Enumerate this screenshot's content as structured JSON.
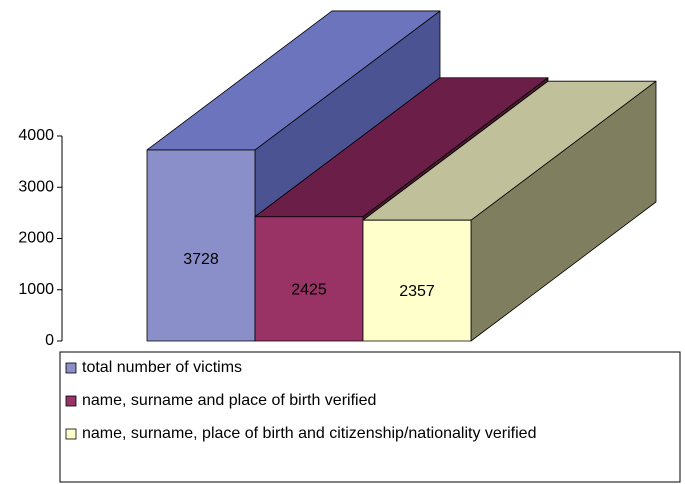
{
  "chart_data": {
    "type": "bar",
    "categories": [
      null
    ],
    "series": [
      {
        "name": "total number of victims",
        "values": [
          3728
        ],
        "color": "#8b8fc9",
        "side_color": "#4b5393",
        "top_color": "#6c74bd"
      },
      {
        "name": "name, surname and place of birth verified",
        "values": [
          2425
        ],
        "color": "#993366",
        "side_color": "#4d1a33",
        "top_color": "#6b1f48"
      },
      {
        "name": "name, surname, place of birth and citizenship/nationality verified",
        "values": [
          2357
        ],
        "color": "#ffffcc",
        "side_color": "#7f7f5f",
        "top_color": "#c0c09a"
      }
    ],
    "ylim": [
      0,
      4000
    ],
    "yticks": [
      0,
      1000,
      2000,
      3000,
      4000
    ],
    "legend": "bottom"
  }
}
